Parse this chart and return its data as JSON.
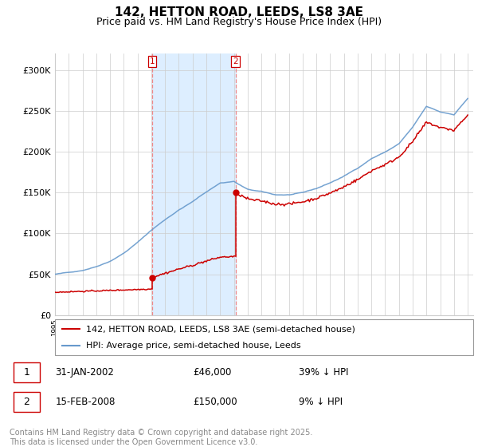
{
  "title": "142, HETTON ROAD, LEEDS, LS8 3AE",
  "subtitle": "Price paid vs. HM Land Registry's House Price Index (HPI)",
  "ylim": [
    0,
    320000
  ],
  "yticks": [
    0,
    50000,
    100000,
    150000,
    200000,
    250000,
    300000
  ],
  "ytick_labels": [
    "£0",
    "£50K",
    "£100K",
    "£150K",
    "£200K",
    "£250K",
    "£300K"
  ],
  "xstart_year": 1995,
  "xend_year": 2025,
  "purchase1_date": "31-JAN-2002",
  "purchase1_price": 46000,
  "purchase1_hpi_pct": "39% ↓ HPI",
  "purchase1_year": 2002.08,
  "purchase2_date": "15-FEB-2008",
  "purchase2_price": 150000,
  "purchase2_hpi_pct": "9% ↓ HPI",
  "purchase2_year": 2008.12,
  "red_line_color": "#cc0000",
  "blue_line_color": "#6699cc",
  "shade_color": "#ddeeff",
  "vline_color": "#ee8888",
  "marker_color": "#cc0000",
  "legend1": "142, HETTON ROAD, LEEDS, LS8 3AE (semi-detached house)",
  "legend2": "HPI: Average price, semi-detached house, Leeds",
  "footer": "Contains HM Land Registry data © Crown copyright and database right 2025.\nThis data is licensed under the Open Government Licence v3.0.",
  "title_fontsize": 11,
  "subtitle_fontsize": 9,
  "axis_fontsize": 8,
  "legend_fontsize": 8,
  "footer_fontsize": 7,
  "hpi_anchors_years": [
    1995.0,
    1996.0,
    1997.0,
    1998.0,
    1999.0,
    2000.0,
    2001.0,
    2002.0,
    2003.0,
    2004.0,
    2005.0,
    2006.0,
    2007.0,
    2008.0,
    2009.0,
    2010.0,
    2011.0,
    2012.0,
    2013.0,
    2014.0,
    2015.0,
    2016.0,
    2017.0,
    2018.0,
    2019.0,
    2020.0,
    2021.0,
    2022.0,
    2023.0,
    2024.0,
    2025.0
  ],
  "hpi_anchors_vals": [
    50000,
    52000,
    55000,
    60000,
    67000,
    77000,
    90000,
    105000,
    118000,
    130000,
    140000,
    152000,
    163000,
    165000,
    155000,
    152000,
    148000,
    148000,
    150000,
    155000,
    162000,
    170000,
    180000,
    192000,
    200000,
    210000,
    230000,
    255000,
    248000,
    245000,
    265000
  ]
}
